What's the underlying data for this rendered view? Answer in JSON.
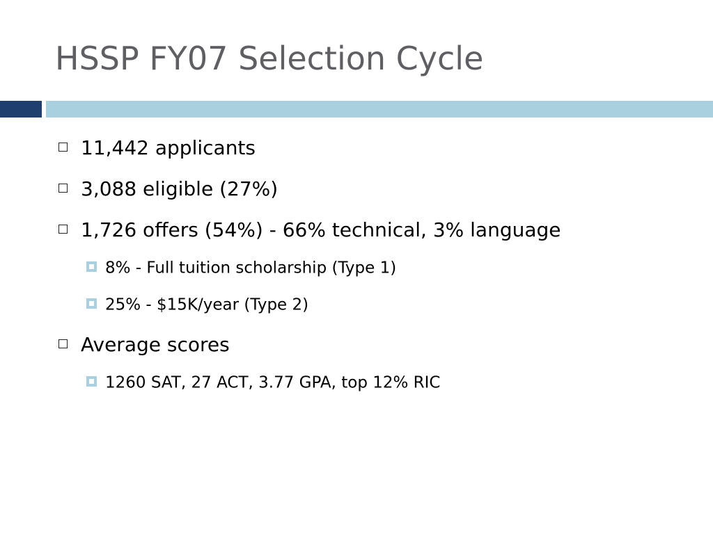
{
  "slide": {
    "title": "HSSP FY07 Selection Cycle"
  },
  "colors": {
    "title_text": "#5f5f63",
    "accent_dark": "#1f3f6f",
    "accent_light": "#a8d0df",
    "sub_bullet": "#a8d0df"
  },
  "bullets": [
    {
      "level": 1,
      "icon": "hollow-square-bullet-icon",
      "text": "11,442 applicants"
    },
    {
      "level": 1,
      "icon": "hollow-square-bullet-icon",
      "text": "3,088 eligible (27%)"
    },
    {
      "level": 1,
      "icon": "hollow-square-bullet-icon",
      "text": "1,726 offers (54%) - 66% technical, 3% language"
    },
    {
      "level": 2,
      "icon": "filled-square-bullet-icon",
      "text": "8% - Full tuition scholarship (Type 1)"
    },
    {
      "level": 2,
      "icon": "filled-square-bullet-icon",
      "text": "25% - $15K/year (Type 2)"
    },
    {
      "level": 1,
      "icon": "hollow-square-bullet-icon",
      "text": "Average scores"
    },
    {
      "level": 2,
      "icon": "filled-square-bullet-icon",
      "text": "1260 SAT, 27 ACT, 3.77 GPA, top 12% RIC"
    }
  ]
}
